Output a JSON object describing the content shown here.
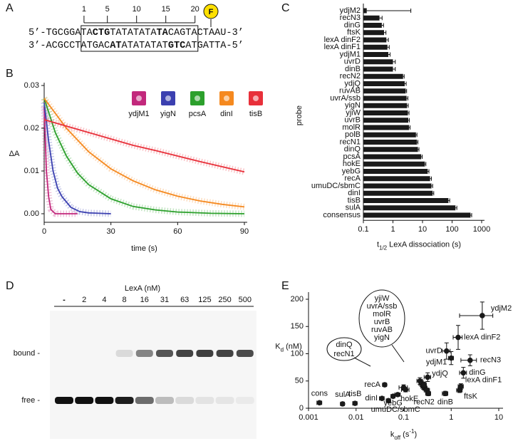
{
  "panel_labels": [
    "A",
    "B",
    "C",
    "D",
    "E"
  ],
  "sequence": {
    "positions": [
      1,
      5,
      10,
      15,
      20
    ],
    "fluor_label": "F",
    "top": [
      {
        "text": "5’-TGCGGA",
        "bold": false
      },
      {
        "text": "TA",
        "bold": false
      },
      {
        "text": "CTG",
        "bold": true
      },
      {
        "text": "TATATATA",
        "bold": false
      },
      {
        "text": "TA",
        "bold": true
      },
      {
        "text": "CAGTA",
        "bold": false
      },
      {
        "text": "CTAAU-3’",
        "bold": false
      }
    ],
    "bottom": [
      {
        "text": "3’-ACGCCT",
        "bold": false
      },
      {
        "text": "ATGAC",
        "bold": false
      },
      {
        "text": "AT",
        "bold": true
      },
      {
        "text": "ATATATAT",
        "bold": false
      },
      {
        "text": "GTC",
        "bold": true
      },
      {
        "text": "AT",
        "bold": false
      },
      {
        "text": "GATTA-5’",
        "bold": false
      }
    ]
  },
  "gel": {
    "title": "LexA (nM)",
    "lanes": [
      "-",
      "2",
      "4",
      "8",
      "16",
      "31",
      "63",
      "125",
      "250",
      "500"
    ],
    "row_labels": [
      "bound -",
      "free -"
    ],
    "bound_intensity": [
      0,
      0,
      0,
      0.12,
      0.5,
      0.7,
      0.78,
      0.8,
      0.78,
      0.75
    ],
    "free_intensity": [
      1,
      1,
      1,
      0.95,
      0.6,
      0.25,
      0.12,
      0.08,
      0.07,
      0.05
    ]
  },
  "chart_data": [
    {
      "type": "line",
      "xlabel": "time (s)",
      "ylabel": "ΔA",
      "xlim": [
        0,
        90
      ],
      "xticks": [
        0,
        30,
        60,
        90
      ],
      "ylim": [
        -0.002,
        0.03
      ],
      "yticks": [
        {
          "value": 0,
          "label": "0.00"
        },
        {
          "value": 0.01,
          "label": "0.01"
        },
        {
          "value": 0.02,
          "label": "0.02"
        },
        {
          "value": 0.03,
          "label": "0.03"
        }
      ],
      "series": [
        {
          "name": "ydjM1",
          "color": "#c2287c",
          "x": [
            0,
            1,
            2,
            3,
            5,
            8,
            15
          ],
          "values": [
            0.025,
            0.01,
            0.004,
            0.001,
            0,
            0,
            0
          ]
        },
        {
          "name": "yigN",
          "color": "#3b40b0",
          "x": [
            0,
            2,
            4,
            6,
            8,
            12,
            16,
            20,
            30
          ],
          "values": [
            0.026,
            0.017,
            0.01,
            0.006,
            0.004,
            0.0015,
            0.0005,
            0.0002,
            0
          ]
        },
        {
          "name": "pcsA",
          "color": "#2ca02c",
          "x": [
            0,
            5,
            10,
            15,
            20,
            30,
            40,
            50,
            60,
            75,
            90
          ],
          "values": [
            0.027,
            0.019,
            0.0135,
            0.0095,
            0.0068,
            0.0035,
            0.0017,
            0.0009,
            0.0004,
            0.0001,
            0
          ]
        },
        {
          "name": "dinI",
          "color": "#f5891f",
          "x": [
            0,
            10,
            20,
            30,
            40,
            50,
            60,
            70,
            80,
            90
          ],
          "values": [
            0.027,
            0.02,
            0.0145,
            0.0105,
            0.0077,
            0.0056,
            0.0041,
            0.003,
            0.0022,
            0.0016
          ]
        },
        {
          "name": "tisB",
          "color": "#e8303a",
          "x": [
            0,
            10,
            20,
            30,
            40,
            50,
            60,
            70,
            80,
            90
          ],
          "values": [
            0.022,
            0.0205,
            0.019,
            0.0175,
            0.016,
            0.0148,
            0.0135,
            0.0122,
            0.011,
            0.0098
          ]
        }
      ]
    },
    {
      "type": "hbar",
      "ylabel": "probe",
      "xlabel": [
        {
          "text": "t"
        },
        {
          "text": "1/2",
          "shift": "sub"
        },
        {
          "text": " LexA dissociation (s)"
        }
      ],
      "xscale": "log",
      "xlim": [
        0.1,
        1000
      ],
      "xticks": [
        0.1,
        1,
        10,
        100,
        1000
      ],
      "color": "#1a1a1a",
      "categories": [
        "ydjM2",
        "recN3",
        "dinG",
        "ftsK",
        "lexA dinF2",
        "lexA dinF1",
        "ydjM1",
        "uvrD",
        "dinB",
        "recN2",
        "ydjQ",
        "ruvAB",
        "uvrA/ssb",
        "yigN",
        "yjiW",
        "uvrB",
        "molR",
        "polB",
        "recN1",
        "dinQ",
        "pcsA",
        "hokE",
        "yebG",
        "recA",
        "umuDC/sbmC",
        "dinI",
        "tisB",
        "sulA",
        "consensus"
      ],
      "values": [
        0.13,
        0.35,
        0.42,
        0.5,
        0.6,
        0.65,
        0.7,
        1.0,
        1.0,
        2.2,
        2.5,
        2.7,
        2.9,
        3.0,
        3.2,
        3.3,
        3.5,
        6,
        6.5,
        7,
        9,
        12,
        15,
        18,
        20,
        22,
        75,
        130,
        420
      ],
      "errors": [
        3.9,
        0.08,
        0.06,
        0.08,
        0.1,
        0.1,
        0.1,
        0.2,
        0.2,
        0.2,
        0.3,
        0.2,
        0.3,
        0.3,
        0.3,
        0.3,
        0.3,
        0.5,
        0.5,
        0.6,
        0.8,
        1,
        1.5,
        2,
        2,
        2,
        8,
        15,
        40
      ]
    },
    {
      "type": "scatter",
      "xlabel": [
        {
          "text": "k"
        },
        {
          "text": "off",
          "shift": "sub"
        },
        {
          "text": " (s"
        },
        {
          "text": "-1",
          "shift": "sup"
        },
        {
          "text": ")"
        }
      ],
      "ylabel": [
        {
          "text": "K"
        },
        {
          "text": "d",
          "shift": "sub"
        },
        {
          "text": " (nM)"
        }
      ],
      "xscale": "log",
      "xlim": [
        0.001,
        10
      ],
      "xticks": [
        0.001,
        0.01,
        0.1,
        1,
        10
      ],
      "ylim": [
        0,
        200
      ],
      "yticks": [
        0,
        50,
        100,
        150,
        200
      ],
      "color": "#1a1a1a",
      "labels": [
        "cons",
        "sulA",
        "tisB",
        "dinI",
        "recA",
        "umuDC/sbmC",
        "yebG",
        "hokE",
        "dinQ",
        "recN1",
        "yjiW",
        "uvrA/ssb",
        "molR",
        "uvrB",
        "ruvAB",
        "yigN",
        "ydjQ",
        "recN2",
        "dinB",
        "ydjM1",
        "uvrD",
        "lexA dinF2",
        "ydjM2",
        "recN3",
        "dinG",
        "lexA dinF1",
        "ftsK"
      ],
      "x": [
        0.0017,
        0.0052,
        0.0095,
        0.035,
        0.04,
        0.048,
        0.06,
        0.075,
        0.1,
        0.11,
        0.22,
        0.24,
        0.26,
        0.28,
        0.31,
        0.27,
        0.32,
        0.33,
        0.75,
        1.0,
        0.8,
        1.4,
        4.5,
        2.5,
        1.8,
        1.6,
        1.5
      ],
      "values": [
        10,
        8,
        9,
        18,
        43,
        14,
        22,
        25,
        38,
        34,
        50,
        45,
        40,
        37,
        33,
        43,
        57,
        27,
        27,
        92,
        105,
        130,
        170,
        88,
        65,
        40,
        33
      ],
      "xerr": [
        0.0002,
        0.0005,
        0.001,
        0.004,
        0.004,
        0.005,
        0.006,
        0.01,
        0.02,
        0.02,
        0.03,
        0.03,
        0.03,
        0.03,
        0.04,
        0.03,
        0.05,
        0.04,
        0.1,
        0.12,
        0.15,
        0.3,
        3,
        0.9,
        0.3,
        0.2,
        0.2
      ],
      "yerr": [
        1,
        1,
        1,
        2,
        3,
        2,
        2,
        3,
        5,
        4,
        6,
        5,
        5,
        4,
        4,
        5,
        8,
        4,
        4,
        12,
        15,
        22,
        25,
        10,
        10,
        5,
        4
      ]
    }
  ]
}
